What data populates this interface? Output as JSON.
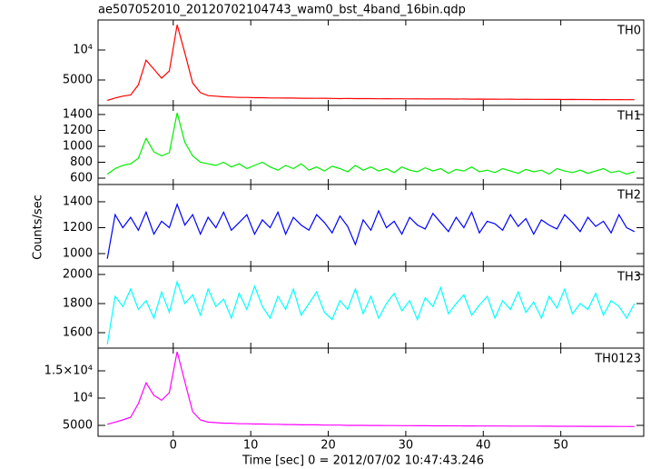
{
  "title": "ae507052010_20120702104743_wam0_bst_4band_16bin.qdp",
  "x_label": "Time [sec] 0 = 2012/07/02 10:47:43.246",
  "y_label": "Counts/sec",
  "chart_data": [
    {
      "type": "line",
      "xlim": [
        -9.7,
        60.7
      ],
      "xticks": [
        0,
        10,
        20,
        30,
        40,
        50
      ],
      "ylim": [
        760,
        15000
      ],
      "yticks": [
        5000,
        {
          "value": 10000,
          "label": "10⁴"
        }
      ],
      "x": [
        -8.5,
        -7.5,
        -6.5,
        -5.5,
        -4.5,
        -3.5,
        -2.5,
        -1.5,
        -0.5,
        0.5,
        1.5,
        2.5,
        3.5,
        4.5,
        5.5,
        6.5,
        7.5,
        8.5,
        9.5,
        10.5,
        11.5,
        12.5,
        13.5,
        14.5,
        15.5,
        16.5,
        17.5,
        18.5,
        19.5,
        20.5,
        21.5,
        22.5,
        23.5,
        24.5,
        25.5,
        26.5,
        27.5,
        28.5,
        29.5,
        30.5,
        31.5,
        32.5,
        33.5,
        34.5,
        35.5,
        36.5,
        37.5,
        38.5,
        39.5,
        40.5,
        41.5,
        42.5,
        43.5,
        44.5,
        45.5,
        46.5,
        47.5,
        48.5,
        49.5,
        50.5,
        51.5,
        52.5,
        53.5,
        54.5,
        55.5,
        56.5,
        57.5,
        58.5,
        59.5
      ],
      "series": [
        {
          "name": "TH0",
          "color": "#ff0000",
          "values": [
            1600,
            2000,
            2300,
            2500,
            4200,
            8300,
            6800,
            5300,
            6500,
            14200,
            9500,
            4500,
            2900,
            2400,
            2300,
            2200,
            2150,
            2100,
            2100,
            2050,
            2050,
            2000,
            2000,
            1980,
            1990,
            1950,
            1960,
            1940,
            1950,
            1920,
            1900,
            1920,
            1900,
            1890,
            1900,
            1870,
            1880,
            1860,
            1870,
            1850,
            1860,
            1840,
            1850,
            1830,
            1840,
            1820,
            1830,
            1810,
            1820,
            1800,
            1810,
            1790,
            1800,
            1780,
            1790,
            1770,
            1780,
            1760,
            1770,
            1750,
            1760,
            1740,
            1750,
            1730,
            1740,
            1720,
            1730,
            1710,
            1720
          ]
        }
      ]
    },
    {
      "type": "line",
      "xlim": [
        -9.7,
        60.7
      ],
      "xticks": [
        0,
        10,
        20,
        30,
        40,
        50
      ],
      "ylim": [
        520,
        1514
      ],
      "yticks": [
        600,
        800,
        1000,
        1200,
        1400
      ],
      "x": [
        -8.5,
        -7.5,
        -6.5,
        -5.5,
        -4.5,
        -3.5,
        -2.5,
        -1.5,
        -0.5,
        0.5,
        1.5,
        2.5,
        3.5,
        4.5,
        5.5,
        6.5,
        7.5,
        8.5,
        9.5,
        10.5,
        11.5,
        12.5,
        13.5,
        14.5,
        15.5,
        16.5,
        17.5,
        18.5,
        19.5,
        20.5,
        21.5,
        22.5,
        23.5,
        24.5,
        25.5,
        26.5,
        27.5,
        28.5,
        29.5,
        30.5,
        31.5,
        32.5,
        33.5,
        34.5,
        35.5,
        36.5,
        37.5,
        38.5,
        39.5,
        40.5,
        41.5,
        42.5,
        43.5,
        44.5,
        45.5,
        46.5,
        47.5,
        48.5,
        49.5,
        50.5,
        51.5,
        52.5,
        53.5,
        54.5,
        55.5,
        56.5,
        57.5,
        58.5,
        59.5
      ],
      "series": [
        {
          "name": "TH1",
          "color": "#00ee00",
          "values": [
            650,
            720,
            760,
            780,
            850,
            1100,
            930,
            880,
            920,
            1420,
            1050,
            880,
            800,
            780,
            760,
            800,
            740,
            780,
            720,
            760,
            800,
            740,
            700,
            760,
            720,
            780,
            700,
            740,
            690,
            750,
            720,
            680,
            760,
            700,
            740,
            690,
            720,
            670,
            740,
            700,
            680,
            730,
            690,
            720,
            660,
            710,
            690,
            740,
            680,
            700,
            670,
            720,
            690,
            660,
            710,
            680,
            700,
            650,
            720,
            690,
            670,
            700,
            660,
            690,
            720,
            670,
            690,
            650,
            680
          ]
        }
      ]
    },
    {
      "type": "line",
      "xlim": [
        -9.7,
        60.7
      ],
      "xticks": [
        0,
        10,
        20,
        30,
        40,
        50
      ],
      "ylim": [
        902,
        1533
      ],
      "yticks": [
        1000,
        1200,
        1400
      ],
      "x": [
        -8.5,
        -7.5,
        -6.5,
        -5.5,
        -4.5,
        -3.5,
        -2.5,
        -1.5,
        -0.5,
        0.5,
        1.5,
        2.5,
        3.5,
        4.5,
        5.5,
        6.5,
        7.5,
        8.5,
        9.5,
        10.5,
        11.5,
        12.5,
        13.5,
        14.5,
        15.5,
        16.5,
        17.5,
        18.5,
        19.5,
        20.5,
        21.5,
        22.5,
        23.5,
        24.5,
        25.5,
        26.5,
        27.5,
        28.5,
        29.5,
        30.5,
        31.5,
        32.5,
        33.5,
        34.5,
        35.5,
        36.5,
        37.5,
        38.5,
        39.5,
        40.5,
        41.5,
        42.5,
        43.5,
        44.5,
        45.5,
        46.5,
        47.5,
        48.5,
        49.5,
        50.5,
        51.5,
        52.5,
        53.5,
        54.5,
        55.5,
        56.5,
        57.5,
        58.5,
        59.5
      ],
      "series": [
        {
          "name": "TH2",
          "color": "#0000ff",
          "values": [
            960,
            1300,
            1200,
            1280,
            1180,
            1320,
            1150,
            1250,
            1200,
            1380,
            1220,
            1300,
            1150,
            1280,
            1200,
            1320,
            1180,
            1240,
            1300,
            1150,
            1260,
            1200,
            1320,
            1150,
            1280,
            1220,
            1180,
            1300,
            1240,
            1160,
            1290,
            1210,
            1070,
            1260,
            1180,
            1330,
            1200,
            1250,
            1150,
            1280,
            1220,
            1190,
            1310,
            1240,
            1170,
            1280,
            1200,
            1320,
            1160,
            1250,
            1230,
            1180,
            1300,
            1210,
            1270,
            1150,
            1260,
            1220,
            1190,
            1300,
            1240,
            1170,
            1280,
            1210,
            1250,
            1160,
            1300,
            1200,
            1170
          ]
        }
      ]
    },
    {
      "type": "line",
      "xlim": [
        -9.7,
        60.7
      ],
      "xticks": [
        0,
        10,
        20,
        30,
        40,
        50
      ],
      "ylim": [
        1494,
        2056
      ],
      "yticks": [
        1600,
        1800,
        2000
      ],
      "x": [
        -8.5,
        -7.5,
        -6.5,
        -5.5,
        -4.5,
        -3.5,
        -2.5,
        -1.5,
        -0.5,
        0.5,
        1.5,
        2.5,
        3.5,
        4.5,
        5.5,
        6.5,
        7.5,
        8.5,
        9.5,
        10.5,
        11.5,
        12.5,
        13.5,
        14.5,
        15.5,
        16.5,
        17.5,
        18.5,
        19.5,
        20.5,
        21.5,
        22.5,
        23.5,
        24.5,
        25.5,
        26.5,
        27.5,
        28.5,
        29.5,
        30.5,
        31.5,
        32.5,
        33.5,
        34.5,
        35.5,
        36.5,
        37.5,
        38.5,
        39.5,
        40.5,
        41.5,
        42.5,
        43.5,
        44.5,
        45.5,
        46.5,
        47.5,
        48.5,
        49.5,
        50.5,
        51.5,
        52.5,
        53.5,
        54.5,
        55.5,
        56.5,
        57.5,
        58.5,
        59.5
      ],
      "series": [
        {
          "name": "TH3",
          "color": "#00ffff",
          "values": [
            1520,
            1850,
            1780,
            1900,
            1760,
            1820,
            1700,
            1880,
            1740,
            1950,
            1800,
            1860,
            1720,
            1900,
            1780,
            1830,
            1700,
            1870,
            1760,
            1920,
            1780,
            1700,
            1850,
            1760,
            1900,
            1720,
            1800,
            1880,
            1740,
            1690,
            1820,
            1760,
            1900,
            1730,
            1850,
            1700,
            1800,
            1870,
            1750,
            1820,
            1690,
            1840,
            1780,
            1910,
            1730,
            1800,
            1860,
            1720,
            1790,
            1850,
            1700,
            1820,
            1760,
            1880,
            1740,
            1810,
            1700,
            1850,
            1770,
            1900,
            1730,
            1800,
            1760,
            1870,
            1720,
            1820,
            1780,
            1700,
            1800
          ]
        }
      ]
    },
    {
      "type": "line",
      "xlim": [
        -9.7,
        60.7
      ],
      "xticks": [
        0,
        10,
        20,
        30,
        40,
        50
      ],
      "ylim": [
        3000,
        19167
      ],
      "yticks": [
        5000,
        {
          "value": 10000,
          "label": "10⁴"
        },
        {
          "value": 15000,
          "label": "1.5×10⁴"
        }
      ],
      "x": [
        -8.5,
        -7.5,
        -6.5,
        -5.5,
        -4.5,
        -3.5,
        -2.5,
        -1.5,
        -0.5,
        0.5,
        1.5,
        2.5,
        3.5,
        4.5,
        5.5,
        6.5,
        7.5,
        8.5,
        9.5,
        10.5,
        11.5,
        12.5,
        13.5,
        14.5,
        15.5,
        16.5,
        17.5,
        18.5,
        19.5,
        20.5,
        21.5,
        22.5,
        23.5,
        24.5,
        25.5,
        26.5,
        27.5,
        28.5,
        29.5,
        30.5,
        31.5,
        32.5,
        33.5,
        34.5,
        35.5,
        36.5,
        37.5,
        38.5,
        39.5,
        40.5,
        41.5,
        42.5,
        43.5,
        44.5,
        45.5,
        46.5,
        47.5,
        48.5,
        49.5,
        50.5,
        51.5,
        52.5,
        53.5,
        54.5,
        55.5,
        56.5,
        57.5,
        58.5,
        59.5
      ],
      "series": [
        {
          "name": "TH0123",
          "color": "#ff00ff",
          "values": [
            5200,
            5600,
            6000,
            6500,
            9000,
            12800,
            10500,
            9600,
            11000,
            18500,
            13000,
            7500,
            6000,
            5600,
            5500,
            5400,
            5400,
            5300,
            5300,
            5250,
            5250,
            5200,
            5200,
            5150,
            5150,
            5100,
            5100,
            5100,
            5050,
            5050,
            5050,
            5000,
            5000,
            5000,
            4980,
            4980,
            4960,
            4960,
            4950,
            4950,
            4940,
            4940,
            4920,
            4920,
            4910,
            4910,
            4900,
            4900,
            4890,
            4890,
            4880,
            4880,
            4870,
            4870,
            4860,
            4860,
            4850,
            4850,
            4840,
            4840,
            4830,
            4830,
            4820,
            4820,
            4810,
            4810,
            4800,
            4800,
            4790
          ]
        }
      ]
    }
  ]
}
